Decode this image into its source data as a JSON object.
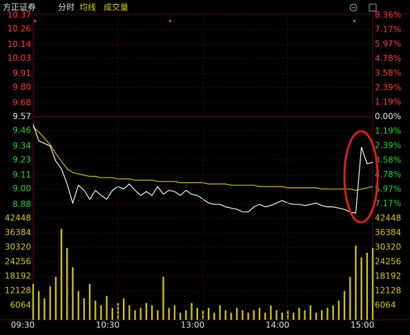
{
  "header": {
    "title": "方正证券",
    "mode": "分时"
  },
  "chart_data": [
    {
      "type": "line",
      "ylim": [
        8.77,
        10.37
      ],
      "yticks": [
        10.37,
        10.26,
        10.14,
        10.03,
        9.91,
        {
          "value": 9.8,
          "label": "9.80"
        },
        9.68,
        9.57,
        9.46,
        9.34,
        9.23,
        9.11,
        {
          "value": 9,
          "label": "9.00"
        },
        8.88
      ],
      "y2lim": [
        -8.36,
        8.36
      ],
      "y2ticks": [
        {
          "value": 8.36,
          "label": "8.36%"
        },
        {
          "value": 7.17,
          "label": "7.17%"
        },
        {
          "value": 5.97,
          "label": "5.97%"
        },
        {
          "value": 4.78,
          "label": "4.78%"
        },
        {
          "value": 3.58,
          "label": "3.58%"
        },
        {
          "value": 2.39,
          "label": "2.39%"
        },
        {
          "value": 1.19,
          "label": "1.19%"
        },
        {
          "value": 0,
          "label": "0.00%"
        },
        {
          "value": -1.19,
          "label": "1.19%"
        },
        {
          "value": -2.39,
          "label": "2.39%"
        },
        {
          "value": -3.58,
          "label": "3.58%"
        },
        {
          "value": -4.78,
          "label": "4.78%"
        },
        {
          "value": -5.97,
          "label": "5.97%"
        },
        {
          "value": -7.17,
          "label": "7.17%"
        }
      ],
      "up_color": "#ff3b3b",
      "down_color": "#2fd12f",
      "flat_color": "#e8e8e8",
      "grid": true,
      "series": [
        {
          "color": "#ffffff",
          "values": [
            9.51,
            9.38,
            9.36,
            9.34,
            9.22,
            9.16,
            9.04,
            8.89,
            9.03,
            8.99,
            8.92,
            8.99,
            8.95,
            8.92,
            8.99,
            9.02,
            9.0,
            9.04,
            8.99,
            8.95,
            8.98,
            8.95,
            9.02,
            8.96,
            8.99,
            8.98,
            8.95,
            8.99,
            8.96,
            8.95,
            8.92,
            8.89,
            8.88,
            8.88,
            8.86,
            8.85,
            8.84,
            8.82,
            8.82,
            8.86,
            8.88,
            8.86,
            8.87,
            8.89,
            8.91,
            8.89,
            8.88,
            8.88,
            8.87,
            8.88,
            8.89,
            8.87,
            8.86,
            8.86,
            8.85,
            8.84,
            8.82,
            8.81,
            9.33,
            9.2,
            9.21
          ]
        },
        {
          "name": "均线",
          "color": "#d6c81e",
          "values": [
            9.49,
            9.45,
            9.4,
            9.35,
            9.28,
            9.22,
            9.16,
            9.13,
            9.12,
            9.11,
            9.1,
            9.1,
            9.09,
            9.09,
            9.09,
            9.08,
            9.08,
            9.08,
            9.07,
            9.07,
            9.07,
            9.07,
            9.06,
            9.06,
            9.06,
            9.06,
            9.05,
            9.05,
            9.05,
            9.05,
            9.05,
            9.04,
            9.04,
            9.04,
            9.04,
            9.03,
            9.03,
            9.03,
            9.03,
            9.03,
            9.02,
            9.02,
            9.02,
            9.02,
            9.02,
            9.01,
            9.01,
            9.01,
            9.01,
            9.01,
            9.01,
            9.0,
            9.0,
            9.0,
            9.0,
            9.0,
            9.0,
            8.99,
            9.0,
            9.01,
            9.02
          ]
        }
      ]
    },
    {
      "type": "bar",
      "name": "成交量",
      "color": "#c9c21a",
      "ylim": [
        0,
        42448
      ],
      "yticks": [
        6064,
        12128,
        18192,
        24256,
        30320,
        36384,
        42448
      ],
      "values": [
        15000,
        12000,
        9000,
        14000,
        18000,
        38000,
        30000,
        22000,
        12000,
        9000,
        15000,
        8000,
        6000,
        10000,
        5000,
        7000,
        9000,
        6000,
        4000,
        5000,
        7000,
        6000,
        4000,
        18000,
        5000,
        6000,
        3000,
        4000,
        7000,
        5000,
        4000,
        5000,
        3000,
        6000,
        4000,
        3000,
        5000,
        4000,
        3000,
        4000,
        5000,
        3000,
        6000,
        4000,
        3000,
        4000,
        3000,
        5000,
        4000,
        6000,
        3000,
        4000,
        5000,
        6000,
        8000,
        12000,
        18000,
        31000,
        26000,
        28000,
        30000
      ],
      "x_labels": [
        "09:30",
        "10:30",
        "13:00",
        "14:00",
        "15:00"
      ]
    }
  ]
}
